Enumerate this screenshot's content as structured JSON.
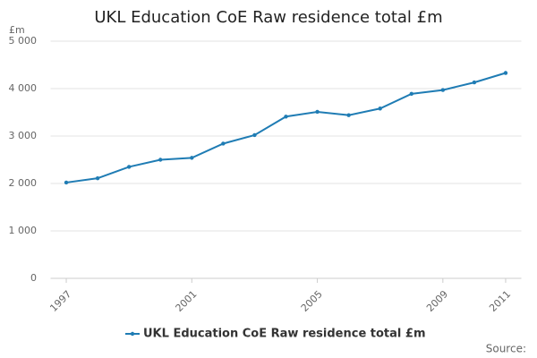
{
  "chart_data": {
    "type": "line",
    "title": "UKL Education CoE Raw residence total £m",
    "y_axis_label": "£m",
    "source": "Source:",
    "x": [
      1997,
      1998,
      1999,
      2000,
      2001,
      2002,
      2003,
      2004,
      2005,
      2006,
      2007,
      2008,
      2009,
      2010,
      2011
    ],
    "series": [
      {
        "name": "UKL Education CoE Raw residence total £m",
        "color": "#1f7cb4",
        "values": [
          2020,
          2110,
          2350,
          2500,
          2540,
          2840,
          3020,
          3410,
          3510,
          3440,
          3580,
          3890,
          3970,
          4130,
          4330
        ]
      }
    ],
    "xlim": [
      1996.5,
      2011.5
    ],
    "xticks": [
      1997,
      2001,
      2005,
      2009,
      2011
    ],
    "ylim": [
      0,
      5000
    ],
    "yticks": [
      0,
      {
        "value": 1000,
        "label": "1 000"
      },
      {
        "value": 2000,
        "label": "2 000"
      },
      {
        "value": 3000,
        "label": "3 000"
      },
      {
        "value": 4000,
        "label": "4 000"
      },
      {
        "value": 5000,
        "label": "5 000"
      }
    ],
    "grid": true
  }
}
